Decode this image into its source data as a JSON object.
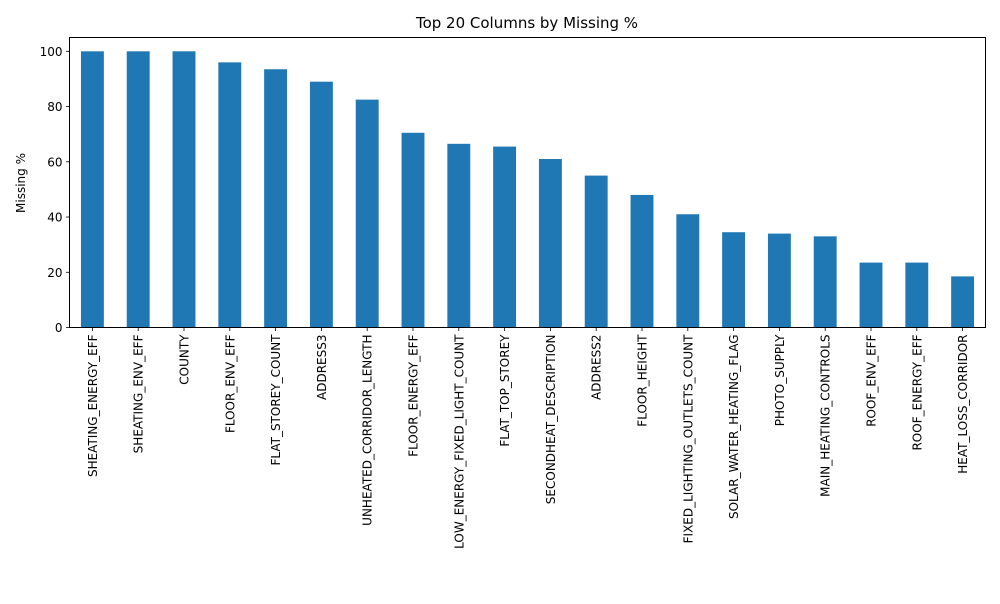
{
  "chart_data": {
    "type": "bar",
    "title": "Top 20 Columns by Missing %",
    "xlabel": "",
    "ylabel": "Missing %",
    "ylim": [
      0,
      105
    ],
    "yticks": [
      0,
      20,
      40,
      60,
      80,
      100
    ],
    "grid": false,
    "legend": "none",
    "bar_color": "#1f77b4",
    "categories": [
      "SHEATING_ENERGY_EFF",
      "SHEATING_ENV_EFF",
      "COUNTY",
      "FLOOR_ENV_EFF",
      "FLAT_STOREY_COUNT",
      "ADDRESS3",
      "UNHEATED_CORRIDOR_LENGTH",
      "FLOOR_ENERGY_EFF",
      "LOW_ENERGY_FIXED_LIGHT_COUNT",
      "FLAT_TOP_STOREY",
      "SECONDHEAT_DESCRIPTION",
      "ADDRESS2",
      "FLOOR_HEIGHT",
      "FIXED_LIGHTING_OUTLETS_COUNT",
      "SOLAR_WATER_HEATING_FLAG",
      "PHOTO_SUPPLY",
      "MAIN_HEATING_CONTROLS",
      "ROOF_ENV_EFF",
      "ROOF_ENERGY_EFF",
      "HEAT_LOSS_CORRIDOR"
    ],
    "values": [
      100,
      100,
      100,
      96,
      93.5,
      89,
      82.5,
      70.5,
      66.5,
      65.5,
      61,
      55,
      48,
      41,
      34.5,
      34,
      33,
      23.5,
      23.5,
      18.5
    ]
  }
}
